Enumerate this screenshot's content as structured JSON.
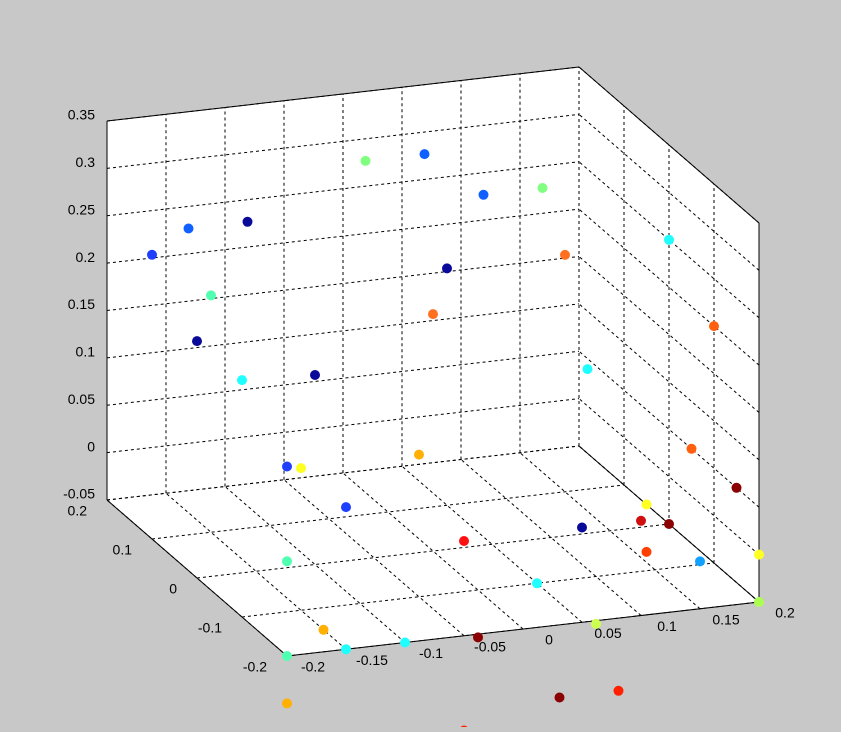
{
  "chart_data": {
    "type": "scatter",
    "title": "",
    "xlabel": "",
    "ylabel": "",
    "zlabel": "",
    "grid": true,
    "xlim": [
      -0.2,
      0.2
    ],
    "ylim": [
      -0.2,
      0.2
    ],
    "zlim": [
      -0.05,
      0.35
    ],
    "x_ticks": [
      "-0.2",
      "-0.15",
      "-0.1",
      "-0.05",
      "0",
      "0.05",
      "0.1",
      "0.15",
      "0.2"
    ],
    "y_ticks": [
      "-0.2",
      "-0.1",
      "0",
      "0.1",
      "0.2"
    ],
    "z_ticks": [
      "-0.05",
      "0",
      "0.05",
      "0.1",
      "0.15",
      "0.2",
      "0.25",
      "0.3",
      "0.35"
    ],
    "points": [
      {
        "x": -0.15,
        "y": 0.15,
        "z": 0.25,
        "color": "#1060ff"
      },
      {
        "x": -0.1,
        "y": 0.15,
        "z": 0.25,
        "color": "#0a0a9a"
      },
      {
        "x": 0.0,
        "y": 0.15,
        "z": 0.3,
        "color": "#80ff80"
      },
      {
        "x": 0.05,
        "y": 0.15,
        "z": 0.3,
        "color": "#1060ff"
      },
      {
        "x": 0.1,
        "y": 0.15,
        "z": 0.25,
        "color": "#1060ff"
      },
      {
        "x": 0.15,
        "y": 0.15,
        "z": 0.25,
        "color": "#80ff80"
      },
      {
        "x": -0.2,
        "y": 0.1,
        "z": 0.25,
        "color": "#1f3fff"
      },
      {
        "x": -0.15,
        "y": 0.1,
        "z": 0.2,
        "color": "#50ffb0"
      },
      {
        "x": 0.05,
        "y": 0.1,
        "z": 0.2,
        "color": "#0a0a9a"
      },
      {
        "x": 0.15,
        "y": 0.1,
        "z": 0.2,
        "color": "#ff7020"
      },
      {
        "x": -0.2,
        "y": 0.0,
        "z": 0.2,
        "color": "#0a0a9a"
      },
      {
        "x": -0.1,
        "y": 0.0,
        "z": 0.15,
        "color": "#0a0a9a"
      },
      {
        "x": 0.0,
        "y": 0.0,
        "z": 0.2,
        "color": "#ff7020"
      },
      {
        "x": 0.2,
        "y": 0.0,
        "z": 0.25,
        "color": "#20ffff"
      },
      {
        "x": -0.2,
        "y": -0.1,
        "z": 0.2,
        "color": "#20ffff"
      },
      {
        "x": -0.15,
        "y": -0.1,
        "z": 0.1,
        "color": "#ffff20"
      },
      {
        "x": -0.05,
        "y": -0.1,
        "z": 0.1,
        "color": "#ffb000"
      },
      {
        "x": 0.2,
        "y": -0.1,
        "z": 0.2,
        "color": "#ff6010"
      },
      {
        "x": -0.2,
        "y": -0.2,
        "z": 0.15,
        "color": "#1f3fff"
      },
      {
        "x": -0.15,
        "y": -0.2,
        "z": 0.1,
        "color": "#1f3fff"
      },
      {
        "x": -0.05,
        "y": -0.2,
        "z": 0.05,
        "color": "#ff1010"
      },
      {
        "x": 0.05,
        "y": -0.2,
        "z": 0.05,
        "color": "#0a0a9a"
      },
      {
        "x": 0.1,
        "y": -0.2,
        "z": 0.05,
        "color": "#d01010"
      },
      {
        "x": 0.15,
        "y": -0.2,
        "z": 0.0,
        "color": "#10a0ff"
      },
      {
        "x": 0.2,
        "y": -0.2,
        "z": 0.0,
        "color": "#ffff20"
      },
      {
        "x": 0.2,
        "y": -0.2,
        "z": -0.05,
        "color": "#aaff50"
      },
      {
        "x": 0.2,
        "y": -0.15,
        "z": 0.05,
        "color": "#8b0000"
      },
      {
        "x": 0.2,
        "y": -0.05,
        "z": 0.05,
        "color": "#ff6010"
      },
      {
        "x": 0.15,
        "y": 0.05,
        "z": 0.1,
        "color": "#20ffff"
      },
      {
        "x": 0.2,
        "y": 0.05,
        "z": -0.05,
        "color": "#ffff20"
      },
      {
        "x": 0.2,
        "y": 0.0,
        "z": -0.05,
        "color": "#8b0000"
      },
      {
        "x": 0.2,
        "y": 0.05,
        "z": -0.1,
        "color": "#ff4000"
      },
      {
        "x": -0.2,
        "y": -0.2,
        "z": 0.05,
        "color": "#50ffb0"
      },
      {
        "x": -0.2,
        "y": -0.2,
        "z": -0.05,
        "color": "#50ffb0"
      },
      {
        "x": -0.15,
        "y": -0.2,
        "z": -0.05,
        "color": "#20ffff"
      },
      {
        "x": -0.15,
        "y": -0.15,
        "z": -0.05,
        "color": "#ffb000"
      },
      {
        "x": -0.1,
        "y": -0.2,
        "z": -0.05,
        "color": "#20ffff"
      },
      {
        "x": -0.2,
        "y": -0.2,
        "z": -0.1,
        "color": "#ffb000"
      },
      {
        "x": -0.15,
        "y": -0.2,
        "z": -0.15,
        "color": "#ccff50"
      },
      {
        "x": -0.1,
        "y": -0.2,
        "z": -0.15,
        "color": "#ff1010"
      },
      {
        "x": 0.0,
        "y": -0.1,
        "z": -0.1,
        "color": "#8b0000"
      },
      {
        "x": 0.05,
        "y": -0.1,
        "z": -0.05,
        "color": "#20ffff"
      },
      {
        "x": -0.05,
        "y": -0.2,
        "z": -0.15,
        "color": "#ff2000"
      },
      {
        "x": 0.05,
        "y": -0.15,
        "z": -0.15,
        "color": "#8b0000"
      },
      {
        "x": 0.1,
        "y": -0.15,
        "z": -0.15,
        "color": "#ff2000"
      },
      {
        "x": 0.1,
        "y": -0.1,
        "z": -0.1,
        "color": "#ccff50"
      }
    ]
  }
}
